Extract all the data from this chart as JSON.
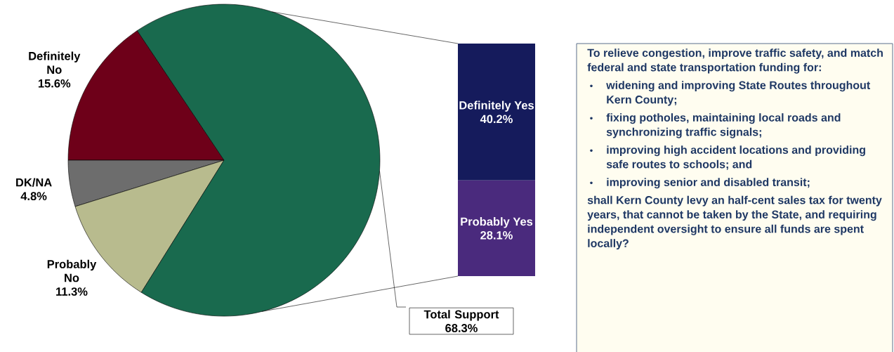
{
  "chart_data": [
    {
      "type": "pie",
      "categories": [
        "Definitely No",
        "DK/NA",
        "Probably No",
        "Total Support"
      ],
      "values": [
        15.6,
        4.8,
        11.3,
        68.3
      ],
      "colors": [
        "#6e0019",
        "#6d6d6d",
        "#b8bb8e",
        "#196a4e"
      ],
      "value_labels": [
        "15.6%",
        "4.8%",
        "11.3%",
        "68.3%"
      ]
    },
    {
      "type": "bar",
      "stacked": true,
      "categories": [
        null
      ],
      "series": [
        {
          "name": "Probably Yes",
          "color": "#4a2a7d",
          "values": [
            28.1
          ],
          "value_labels": [
            "28.1%"
          ]
        },
        {
          "name": "Definitely Yes",
          "color": "#151b5c",
          "values": [
            40.2
          ],
          "value_labels": [
            "40.2%"
          ]
        }
      ]
    },
    {
      "type": "other",
      "annotations": [
        "To relieve congestion, improve traffic safety, and match federal and state transportation funding for:",
        "widening and improving State Routes throughout Kern County;",
        "fixing potholes, maintaining local roads and synchronizing traffic signals;",
        "improving high accident locations and providing safe routes to schools; and",
        "improving senior and disabled transit;",
        "shall Kern County levy an half-cent sales tax for twenty years, that cannot be taken by the State, and requiring independent oversight to ensure all funds are spent locally?"
      ]
    }
  ]
}
